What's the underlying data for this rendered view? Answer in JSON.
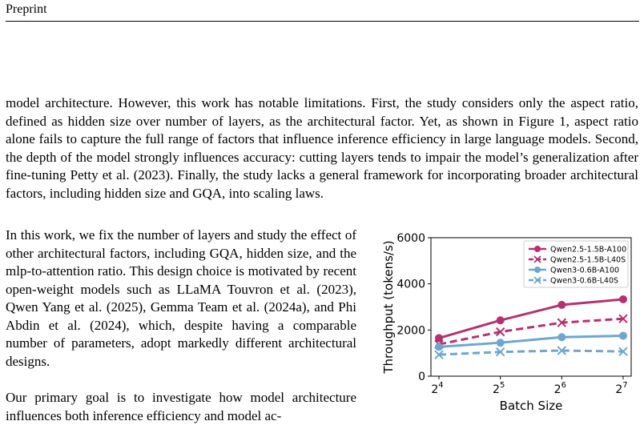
{
  "header": {
    "running_title": "Preprint"
  },
  "body": {
    "paragraph_1": "model architecture. However, this work has notable limitations. First, the study considers only the aspect ratio, defined as hidden size over number of layers, as the architectural factor. Yet, as shown in Figure 1, aspect ratio alone fails to capture the full range of factors that influence inference efficiency in large language models. Second, the depth of the model strongly influences accuracy: cutting layers tends to impair the model’s generalization after fine-tuning Petty et al. (2023). Finally, the study lacks a general framework for incorporating broader architectural factors, including hidden size and GQA, into scaling laws.",
    "paragraph_2": "In this work, we fix the number of layers and study the effect of other architectural factors, including GQA, hidden size, and the mlp-to-attention ratio. This design choice is motivated by recent open-weight models such as LLaMA Touvron et al. (2023), Qwen Yang et al. (2025), Gemma Team et al. (2024a), and Phi Abdin et al. (2024), which, despite having a comparable number of parameters, adopt markedly different architectural designs.",
    "paragraph_3": "Our primary goal is to investigate how model architecture influences both inference efficiency and model ac-"
  },
  "chart_data": {
    "type": "line",
    "xlabel": "Batch Size",
    "ylabel": "Throughput (tokens/s)",
    "x": [
      16,
      32,
      64,
      128
    ],
    "x_ticks": [
      {
        "base": "2",
        "exp": "4"
      },
      {
        "base": "2",
        "exp": "5"
      },
      {
        "base": "2",
        "exp": "6"
      },
      {
        "base": "2",
        "exp": "7"
      }
    ],
    "x_scale": "log2",
    "ylim": [
      0,
      6000
    ],
    "y_ticks": [
      "0",
      "2000",
      "4000",
      "6000"
    ],
    "y_tick_values": [
      0,
      2000,
      4000,
      6000
    ],
    "grid": false,
    "legend_position": "top-right",
    "series": [
      {
        "name": "Qwen2.5-1.5B-A100",
        "values": [
          1650,
          2420,
          3090,
          3330
        ],
        "color": "#b5326f",
        "marker": "circle",
        "dash": false
      },
      {
        "name": "Qwen2.5-1.5B-L40S",
        "values": [
          1380,
          1920,
          2320,
          2490
        ],
        "color": "#b5326f",
        "marker": "x",
        "dash": true
      },
      {
        "name": "Qwen3-0.6B-A100",
        "values": [
          1270,
          1450,
          1690,
          1750
        ],
        "color": "#6ea6cf",
        "marker": "circle",
        "dash": false
      },
      {
        "name": "Qwen3-0.6B-L40S",
        "values": [
          930,
          1050,
          1110,
          1070
        ],
        "color": "#6ea6cf",
        "marker": "x",
        "dash": true
      }
    ]
  }
}
